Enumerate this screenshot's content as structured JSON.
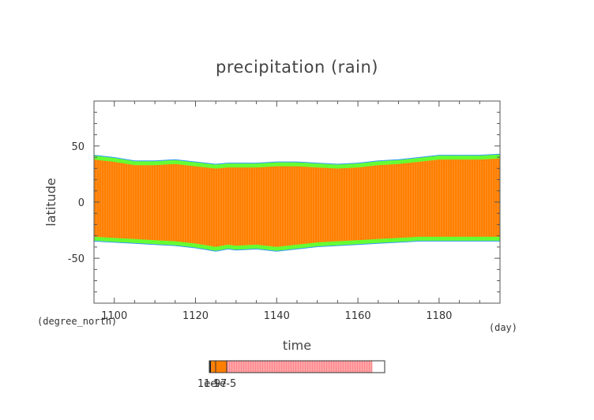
{
  "chart_data": {
    "type": "heatmap",
    "title": "precipitation (rain)",
    "xlabel": "time",
    "ylabel": "latitude",
    "x_unit": "(day)",
    "y_unit": "(degree_north)",
    "xlim": [
      1095,
      1195
    ],
    "ylim": [
      -90,
      90
    ],
    "x_ticks": [
      1100,
      1120,
      1140,
      1160,
      1180
    ],
    "y_ticks": [
      50,
      0,
      -50
    ],
    "band": {
      "time": [
        1095,
        1100,
        1105,
        1110,
        1115,
        1120,
        1125,
        1128,
        1130,
        1135,
        1140,
        1145,
        1150,
        1155,
        1160,
        1165,
        1170,
        1175,
        1180,
        1185,
        1190,
        1195
      ],
      "north_edge_lat": [
        40,
        38,
        35,
        35,
        36,
        34,
        32,
        33,
        33,
        33,
        34,
        34,
        33,
        32,
        33,
        35,
        36,
        38,
        40,
        40,
        40,
        41
      ],
      "south_edge_lat": [
        -33,
        -34,
        -35,
        -36,
        -37,
        -39,
        -42,
        -40,
        -41,
        -40,
        -42,
        -40,
        -38,
        -37,
        -36,
        -35,
        -34,
        -33,
        -33,
        -33,
        -33,
        -33
      ],
      "fill_color": "#ff7f00",
      "edge_color": "#66ff33",
      "outer_edge_color": "#3399ff"
    },
    "colorbar": {
      "tick_labels": [
        "1e-9",
        "1e-7",
        "1e-5"
      ],
      "segments": [
        {
          "color": "#1a1a1a",
          "fraction": 0.01
        },
        {
          "color": "#ff7f00",
          "fraction": 0.09
        },
        {
          "color": "#ffa5a8",
          "fraction": 0.83
        },
        {
          "color": "#ffffff",
          "fraction": 0.07
        }
      ]
    }
  }
}
